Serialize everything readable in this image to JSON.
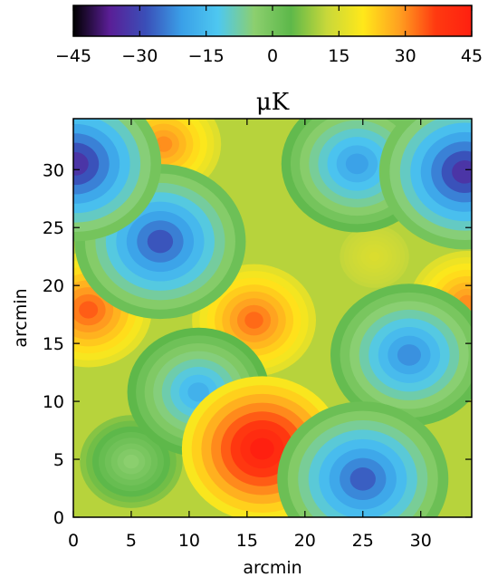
{
  "chart_data": {
    "type": "heatmap",
    "title": "",
    "colorbar": {
      "label": "μK",
      "range": [
        -45,
        45
      ],
      "ticks": [
        "−45",
        "−30",
        "−15",
        "0",
        "15",
        "30",
        "45"
      ],
      "tick_values": [
        -45,
        -30,
        -15,
        0,
        15,
        30,
        45
      ],
      "colors": [
        "#000000",
        "#5a1e96",
        "#3a4fb8",
        "#3aa0e8",
        "#4ec8f0",
        "#8ccf6e",
        "#5db84a",
        "#c8d83a",
        "#ffe81a",
        "#ffa020",
        "#ff3a10",
        "#ff2010"
      ]
    },
    "xlabel": "arcmin",
    "ylabel": "arcmin",
    "xlim": [
      0,
      34.4
    ],
    "ylim": [
      0,
      34.4
    ],
    "x_ticks": [
      "0",
      "5",
      "10",
      "15",
      "20",
      "25",
      "30"
    ],
    "x_tick_values": [
      0,
      5,
      10,
      15,
      20,
      25,
      30
    ],
    "y_ticks": [
      "0",
      "5",
      "10",
      "15",
      "20",
      "25",
      "30"
    ],
    "y_tick_values": [
      0,
      5,
      10,
      15,
      20,
      25,
      30
    ],
    "background_level": 11,
    "features": [
      {
        "x": 16.3,
        "y": 5.9,
        "value": 45
      },
      {
        "x": 15.6,
        "y": 17.0,
        "value": 33
      },
      {
        "x": 1.3,
        "y": 17.9,
        "value": 34
      },
      {
        "x": 7.8,
        "y": 32.2,
        "value": 30
      },
      {
        "x": 34.0,
        "y": 18.5,
        "value": 30
      },
      {
        "x": 7.5,
        "y": 23.8,
        "value": -28
      },
      {
        "x": 10.8,
        "y": 10.8,
        "value": -17
      },
      {
        "x": 25.0,
        "y": 3.3,
        "value": -27
      },
      {
        "x": 29.0,
        "y": 14.0,
        "value": -22
      },
      {
        "x": 33.8,
        "y": 29.8,
        "value": -33
      },
      {
        "x": 0.2,
        "y": 30.5,
        "value": -33
      },
      {
        "x": 24.5,
        "y": 30.5,
        "value": -20
      },
      {
        "x": 29.5,
        "y": 32.0,
        "value": 2
      },
      {
        "x": 5.0,
        "y": 4.8,
        "value": -4
      },
      {
        "x": 26.0,
        "y": 22.5,
        "value": 15
      }
    ]
  }
}
